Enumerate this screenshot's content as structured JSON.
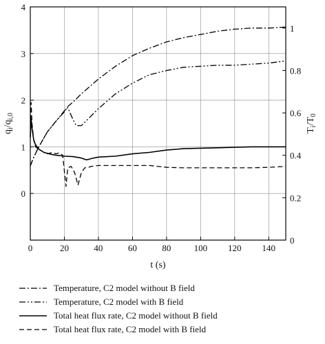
{
  "chart_data": {
    "type": "line",
    "title": "",
    "xlabel": "t (s)",
    "ylabel_left": {
      "main": "q",
      "sub": "i",
      "slash": "/q",
      "sub2": "i,0"
    },
    "ylabel_right": {
      "main": "T",
      "sub": "i",
      "slash": "/T",
      "sub2": "0"
    },
    "xlim": [
      0,
      150
    ],
    "ylim_left": [
      -1,
      4
    ],
    "ylim_right": [
      0,
      1.1
    ],
    "x_ticks": [
      0,
      20,
      40,
      60,
      80,
      100,
      120,
      140
    ],
    "x_tick_labels": [
      "0",
      "20",
      "40",
      "60",
      "80",
      "100",
      "120",
      "140"
    ],
    "y_left_ticks": [
      0,
      1,
      2,
      3,
      4
    ],
    "y_left_tick_labels": [
      "0",
      "1",
      "2",
      "3",
      "4"
    ],
    "y_right_ticks": [
      0,
      0.2,
      0.4,
      0.6,
      0.8,
      1
    ],
    "y_right_tick_labels": [
      "0",
      "0.2",
      "0.4",
      "0.6",
      "0.8",
      "1"
    ],
    "grid": true,
    "legend_position": "below",
    "series": [
      {
        "name": "Temperature, C2 model without B field",
        "axis": "right",
        "dash": "dashdot",
        "x": [
          0,
          2,
          5,
          10,
          15,
          20,
          22,
          25,
          30,
          40,
          50,
          60,
          70,
          80,
          90,
          100,
          110,
          120,
          130,
          140,
          150
        ],
        "y": [
          0.35,
          0.39,
          0.44,
          0.51,
          0.56,
          0.605,
          0.63,
          0.65,
          0.69,
          0.76,
          0.82,
          0.87,
          0.905,
          0.935,
          0.955,
          0.97,
          0.985,
          0.995,
          1.0,
          1.0,
          1.005
        ]
      },
      {
        "name": "Temperature, C2 model with B field",
        "axis": "right",
        "dash": "dashdotdot",
        "x": [
          0,
          2,
          5,
          10,
          15,
          20,
          22,
          25,
          27,
          30,
          35,
          40,
          50,
          60,
          70,
          80,
          90,
          100,
          110,
          120,
          130,
          140,
          150
        ],
        "y": [
          0.35,
          0.39,
          0.44,
          0.51,
          0.56,
          0.61,
          0.625,
          0.57,
          0.54,
          0.54,
          0.58,
          0.62,
          0.69,
          0.74,
          0.78,
          0.8,
          0.815,
          0.82,
          0.825,
          0.825,
          0.83,
          0.835,
          0.845
        ]
      },
      {
        "name": "Total heat flux rate, C2 model without B field",
        "axis": "left",
        "dash": "solid",
        "x": [
          0,
          0.5,
          1,
          2,
          3,
          5,
          8,
          12,
          15,
          20,
          25,
          30,
          33,
          36,
          40,
          50,
          60,
          70,
          80,
          90,
          100,
          110,
          120,
          130,
          140,
          150
        ],
        "y": [
          1.2,
          1.6,
          1.4,
          1.15,
          1.05,
          0.95,
          0.88,
          0.84,
          0.82,
          0.8,
          0.79,
          0.76,
          0.72,
          0.75,
          0.78,
          0.8,
          0.85,
          0.88,
          0.93,
          0.96,
          0.97,
          0.98,
          0.99,
          1.0,
          1.0,
          1.0
        ]
      },
      {
        "name": "Total heat flux rate, C2 model with B field",
        "axis": "left",
        "dash": "dashed",
        "x": [
          0,
          0.5,
          1,
          2,
          3,
          5,
          8,
          10,
          13,
          15,
          17,
          19,
          21,
          22,
          24,
          26,
          28,
          30,
          32,
          34,
          36,
          40,
          45,
          50,
          60,
          70,
          80,
          90,
          100,
          110,
          120,
          130,
          140,
          150
        ],
        "y": [
          1.25,
          1.95,
          1.5,
          1.15,
          1.0,
          0.95,
          0.88,
          0.85,
          0.88,
          0.85,
          0.87,
          0.82,
          0.15,
          0.55,
          0.58,
          0.45,
          0.18,
          0.45,
          0.55,
          0.56,
          0.58,
          0.6,
          0.6,
          0.6,
          0.6,
          0.6,
          0.56,
          0.55,
          0.55,
          0.55,
          0.55,
          0.55,
          0.56,
          0.58
        ]
      }
    ]
  }
}
